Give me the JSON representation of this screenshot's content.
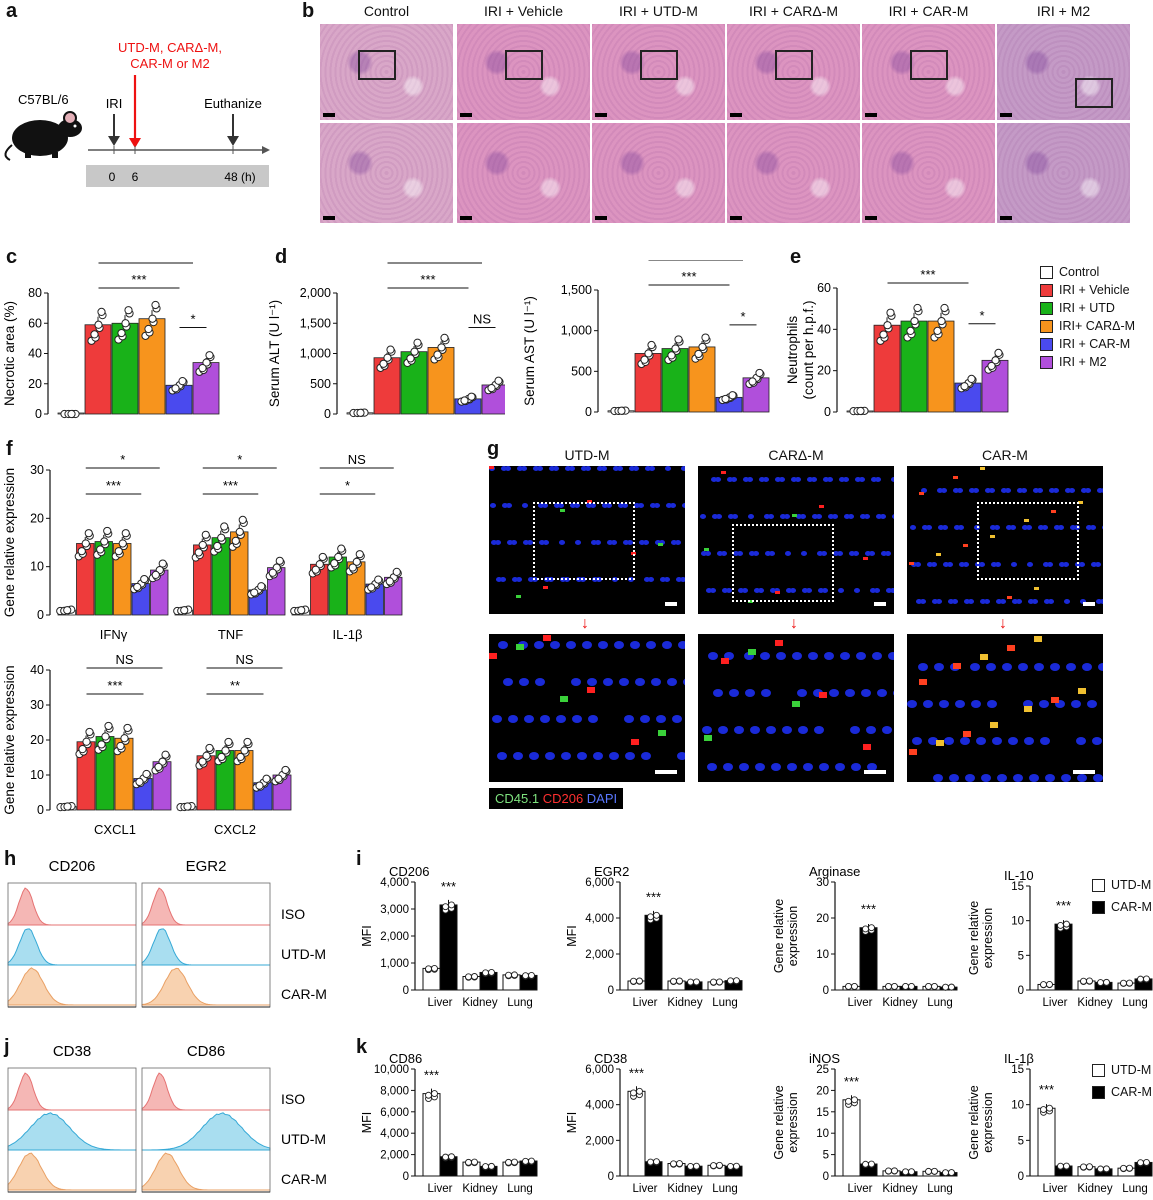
{
  "panels": {
    "a": {
      "letter": "a",
      "mouse_label": "C57BL/6",
      "treatment": [
        "UTD-M, CARΔ-M,",
        "CAR-M or M2"
      ],
      "iri": "IRI",
      "euthanize": "Euthanize",
      "ticks": [
        "0",
        "6",
        "48 (h)"
      ]
    },
    "b": {
      "letter": "b",
      "columns": [
        "Control",
        "IRI + Vehicle",
        "IRI + UTD-M",
        "IRI + CARΔ-M",
        "IRI + CAR-M",
        "IRI + M2"
      ]
    },
    "c": {
      "letter": "c"
    },
    "d": {
      "letter": "d"
    },
    "e": {
      "letter": "e"
    },
    "f": {
      "letter": "f"
    },
    "g": {
      "letter": "g",
      "columns": [
        "UTD-M",
        "CARΔ-M",
        "CAR-M"
      ],
      "stain_legend": {
        "cd45": "CD45.1",
        "cd206": "CD206",
        "dapi": "DAPI"
      }
    },
    "h": {
      "letter": "h",
      "columns": [
        "CD206",
        "EGR2"
      ],
      "rows": [
        "ISO",
        "UTD-M",
        "CAR-M"
      ]
    },
    "i": {
      "letter": "i"
    },
    "j": {
      "letter": "j",
      "columns": [
        "CD38",
        "CD86"
      ],
      "rows": [
        "ISO",
        "UTD-M",
        "CAR-M"
      ]
    },
    "k": {
      "letter": "k"
    }
  },
  "group_legend": {
    "items": [
      {
        "label": "Control",
        "color": "#ffffff"
      },
      {
        "label": "IRI + Vehicle",
        "color": "#ee3b3b"
      },
      {
        "label": "IRI + UTD",
        "color": "#19b219"
      },
      {
        "label": "IRI+ CARΔ-M",
        "color": "#f7941d"
      },
      {
        "label": "IRI + CAR-M",
        "color": "#4a4aee"
      },
      {
        "label": "IRI + M2",
        "color": "#b04fdb"
      }
    ]
  },
  "ik_legend": {
    "items": [
      {
        "label": "UTD-M",
        "color": "#ffffff"
      },
      {
        "label": "CAR-M",
        "color": "#000000"
      }
    ]
  },
  "chart_data": [
    {
      "id": "c",
      "type": "bar",
      "ylabel": "Necrotic area (%)",
      "ylim": [
        0,
        80
      ],
      "yticks": [
        "0",
        "20",
        "40",
        "60",
        "80"
      ],
      "categories": [
        "Control",
        "IRI + Vehicle",
        "IRI + UTD",
        "IRI+ CARΔ-M",
        "IRI + CAR-M",
        "IRI + M2"
      ],
      "values": [
        0,
        59,
        60,
        63,
        19,
        34
      ],
      "annotations": [
        "***",
        "***",
        "*"
      ]
    },
    {
      "id": "d1",
      "type": "bar",
      "ylabel": "Serum ALT (U l⁻¹)",
      "ylim": [
        0,
        2000
      ],
      "yticks": [
        "0",
        "500",
        "1,000",
        "1,500",
        "2,000"
      ],
      "values": [
        20,
        930,
        1030,
        1100,
        250,
        480
      ],
      "annotations": [
        "***",
        "***",
        "NS"
      ]
    },
    {
      "id": "d2",
      "type": "bar",
      "ylabel": "Serum AST (U l⁻¹)",
      "ylim": [
        0,
        1500
      ],
      "yticks": [
        "0",
        "500",
        "1,000",
        "1,500"
      ],
      "values": [
        15,
        720,
        780,
        800,
        180,
        420
      ],
      "annotations": [
        "***",
        "***",
        "*"
      ]
    },
    {
      "id": "e",
      "type": "bar",
      "ylabel": "Neutrophils",
      "ylabel2": "(count per h.p.f.)",
      "ylim": [
        0,
        60
      ],
      "yticks": [
        "0",
        "20",
        "40",
        "60"
      ],
      "values": [
        0.5,
        42,
        44,
        44,
        14,
        25
      ],
      "annotations": [
        "***",
        "***",
        "*"
      ]
    },
    {
      "id": "f1",
      "type": "bar",
      "ylabel": "Gene relative expression",
      "ylim": [
        0,
        30
      ],
      "yticks": [
        "0",
        "10",
        "20",
        "30"
      ],
      "genes": [
        "IFNγ",
        "TNF",
        "IL-1β"
      ],
      "values": [
        [
          1,
          14.8,
          15.2,
          14.8,
          6.5,
          9.3
        ],
        [
          1,
          14.5,
          16.0,
          17.2,
          5.2,
          9.8
        ],
        [
          1,
          10.5,
          12.0,
          11.0,
          6.4,
          7.8
        ]
      ],
      "annotations": [
        [
          "*",
          "***"
        ],
        [
          "*",
          "***"
        ],
        [
          "NS",
          "*"
        ]
      ]
    },
    {
      "id": "f2",
      "type": "bar",
      "ylabel": "Gene relative expression",
      "ylim": [
        0,
        40
      ],
      "yticks": [
        "0",
        "10",
        "20",
        "30",
        "40"
      ],
      "genes": [
        "CXCL1",
        "CXCL2"
      ],
      "values": [
        [
          1,
          19.5,
          21.0,
          20.5,
          9.0,
          13.8
        ],
        [
          1,
          15.5,
          17.0,
          17.0,
          7.8,
          10.0
        ]
      ],
      "annotations": [
        [
          "NS",
          "***"
        ],
        [
          "NS",
          "**"
        ]
      ]
    },
    {
      "id": "i1",
      "type": "bar",
      "title": "CD206",
      "ylabel": "MFI",
      "ylim": [
        0,
        4000
      ],
      "yticks": [
        "0",
        "1,000",
        "2,000",
        "3,000",
        "4,000"
      ],
      "categories": [
        "Liver",
        "Kidney",
        "Lung"
      ],
      "series": [
        {
          "name": "UTD-M",
          "values": [
            800,
            500,
            560
          ]
        },
        {
          "name": "CAR-M",
          "values": [
            3150,
            650,
            540
          ]
        }
      ],
      "stars": [
        "***",
        "",
        ""
      ]
    },
    {
      "id": "i2",
      "type": "bar",
      "title": "EGR2",
      "ylabel": "MFI",
      "ylim": [
        0,
        6000
      ],
      "yticks": [
        "0",
        "2,000",
        "4,000",
        "6,000"
      ],
      "categories": [
        "Liver",
        "Kidney",
        "Lung"
      ],
      "series": [
        {
          "name": "UTD-M",
          "values": [
            500,
            500,
            450
          ]
        },
        {
          "name": "CAR-M",
          "values": [
            4150,
            450,
            520
          ]
        }
      ],
      "stars": [
        "***",
        "",
        ""
      ]
    },
    {
      "id": "i3",
      "type": "bar",
      "title": "Arginase",
      "ylabel": "Gene relative",
      "ylabel2": "expression",
      "ylim": [
        0,
        30
      ],
      "yticks": [
        "0",
        "10",
        "20",
        "30"
      ],
      "categories": [
        "Liver",
        "Kidney",
        "Lung"
      ],
      "series": [
        {
          "name": "UTD-M",
          "values": [
            1,
            1,
            1
          ]
        },
        {
          "name": "CAR-M",
          "values": [
            17.3,
            1,
            0.8
          ]
        }
      ],
      "stars": [
        "***",
        "",
        ""
      ]
    },
    {
      "id": "i4",
      "type": "bar",
      "title": "IL-10",
      "ylabel": "Gene relative",
      "ylabel2": "expression",
      "ylim": [
        0,
        15
      ],
      "yticks": [
        "0",
        "5",
        "10",
        "15"
      ],
      "categories": [
        "Liver",
        "Kidney",
        "Lung"
      ],
      "series": [
        {
          "name": "UTD-M",
          "values": [
            0.8,
            1.3,
            1.0
          ]
        },
        {
          "name": "CAR-M",
          "values": [
            9.5,
            1.1,
            1.6
          ]
        }
      ],
      "stars": [
        "***",
        "",
        ""
      ]
    },
    {
      "id": "k1",
      "type": "bar",
      "title": "CD86",
      "ylabel": "MFI",
      "ylim": [
        0,
        10000
      ],
      "yticks": [
        "0",
        "2,000",
        "4,000",
        "6,000",
        "8,000",
        "10,000"
      ],
      "categories": [
        "Liver",
        "Kidney",
        "Lung"
      ],
      "series": [
        {
          "name": "UTD-M",
          "values": [
            7700,
            1300,
            1300
          ]
        },
        {
          "name": "CAR-M",
          "values": [
            1800,
            900,
            1400
          ]
        }
      ],
      "stars": [
        "***",
        "",
        ""
      ],
      "star_on": "utd"
    },
    {
      "id": "k2",
      "type": "bar",
      "title": "CD38",
      "ylabel": "MFI",
      "ylim": [
        0,
        6000
      ],
      "yticks": [
        "0",
        "2,000",
        "4,000",
        "6,000"
      ],
      "categories": [
        "Liver",
        "Kidney",
        "Lung"
      ],
      "series": [
        {
          "name": "UTD-M",
          "values": [
            4750,
            700,
            600
          ]
        },
        {
          "name": "CAR-M",
          "values": [
            800,
            550,
            550
          ]
        }
      ],
      "stars": [
        "***",
        "",
        ""
      ],
      "star_on": "utd"
    },
    {
      "id": "k3",
      "type": "bar",
      "title": "iNOS",
      "ylabel": "Gene relative",
      "ylabel2": "expression",
      "ylim": [
        0,
        25
      ],
      "yticks": [
        "0",
        "5",
        "10",
        "15",
        "20",
        "25"
      ],
      "categories": [
        "Liver",
        "Kidney",
        "Lung"
      ],
      "series": [
        {
          "name": "UTD-M",
          "values": [
            17.8,
            1.2,
            1.1
          ]
        },
        {
          "name": "CAR-M",
          "values": [
            2.8,
            1.0,
            0.8
          ]
        }
      ],
      "stars": [
        "***",
        "",
        ""
      ],
      "star_on": "utd"
    },
    {
      "id": "k4",
      "type": "bar",
      "title": "IL-1β",
      "ylabel": "Gene relative",
      "ylabel2": "expression",
      "ylim": [
        0,
        15
      ],
      "yticks": [
        "0",
        "5",
        "10",
        "15"
      ],
      "categories": [
        "Liver",
        "Kidney",
        "Lung"
      ],
      "series": [
        {
          "name": "UTD-M",
          "values": [
            9.5,
            1.3,
            1.1
          ]
        },
        {
          "name": "CAR-M",
          "values": [
            1.4,
            1.0,
            1.9
          ]
        }
      ],
      "stars": [
        "***",
        "",
        ""
      ],
      "star_on": "utd"
    }
  ]
}
